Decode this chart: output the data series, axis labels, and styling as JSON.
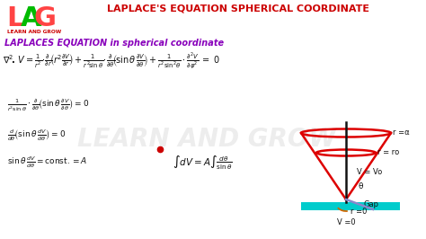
{
  "title": "LAPLACE'S EQUATION SPHERICAL COORDINATE",
  "title_color": "#cc0000",
  "bg_color": "#ffffff",
  "lag_L": "#ff4444",
  "lag_A": "#00bb00",
  "lag_G": "#ff4444",
  "lag_sub": "#cc0000",
  "subtitle_color": "#8800bb",
  "subtitle": "LAPLACES EQUATION in spherical coordinate",
  "watermark": "LEARN AND GROW",
  "cone_color": "#dd0000",
  "axis_color": "#111111",
  "ground_color": "#00cccc",
  "gap_line_color": "#8888cc",
  "label_ra": "r =α",
  "label_ro": "r = ro",
  "label_vvo": "V = Vo",
  "label_gap": "Gap",
  "label_r0": "r =0",
  "label_v0": "V =0",
  "label_theta": "θ"
}
